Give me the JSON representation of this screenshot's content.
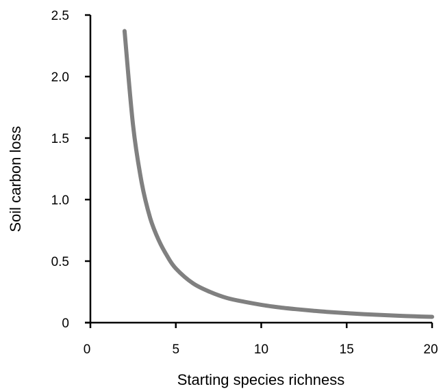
{
  "chart_data": {
    "type": "line",
    "title": "",
    "xlabel": "Starting species  richness",
    "ylabel": "Soil carbon loss",
    "xlim": [
      0,
      20
    ],
    "ylim": [
      0,
      2.5
    ],
    "xticks": [
      "0",
      "5",
      "10",
      "15",
      "20"
    ],
    "yticks": [
      "0",
      "0.5",
      "1.0",
      "1.5",
      "2.0",
      "2.5"
    ],
    "grid": false,
    "legend": "none",
    "series": [
      {
        "color": "#808080",
        "x": [
          2,
          2.5,
          3,
          3.5,
          4,
          4.5,
          5,
          6,
          7,
          8,
          9,
          10,
          11,
          12,
          13,
          14,
          15,
          16,
          17,
          18,
          19,
          20
        ],
        "y": [
          2.37,
          1.6,
          1.14,
          0.85,
          0.67,
          0.54,
          0.44,
          0.32,
          0.25,
          0.2,
          0.17,
          0.145,
          0.125,
          0.11,
          0.097,
          0.086,
          0.077,
          0.069,
          0.062,
          0.056,
          0.051,
          0.047
        ]
      }
    ]
  }
}
